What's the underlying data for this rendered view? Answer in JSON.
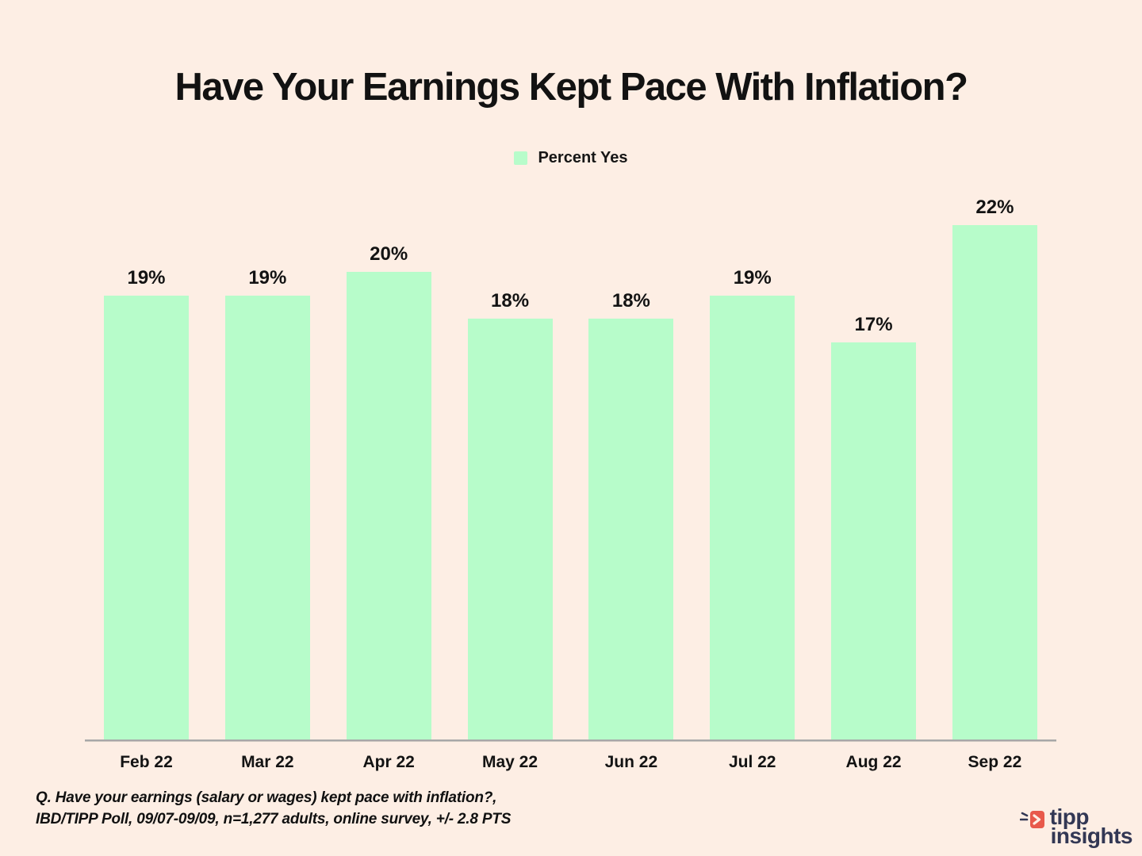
{
  "title": "Have Your Earnings Kept Pace With Inflation?",
  "legend": {
    "label": "Percent Yes"
  },
  "chart_data": {
    "type": "bar",
    "title": "Have Your Earnings Kept Pace With Inflation?",
    "categories": [
      "Feb 22",
      "Mar 22",
      "Apr 22",
      "May 22",
      "Jun 22",
      "Jul 22",
      "Aug 22",
      "Sep 22"
    ],
    "series": [
      {
        "name": "Percent Yes",
        "values": [
          19,
          19,
          20,
          18,
          18,
          19,
          17,
          22
        ]
      }
    ],
    "unit": "%",
    "value_labels": [
      "19%",
      "19%",
      "20%",
      "18%",
      "18%",
      "19%",
      "17%",
      "22%"
    ],
    "xlabel": "",
    "ylabel": "",
    "y_axis_visible": false,
    "grid": false,
    "legend_position": "top-center",
    "bar_color": "#B7FCCA"
  },
  "footnote": {
    "line1": "Q. Have your earnings (salary or wages) kept pace with inflation?,",
    "line2": "IBD/TIPP Poll, 09/07-09/09, n=1,277 adults, online survey, +/- 2.8 PTS"
  },
  "logo": {
    "line1": "tipp",
    "line2": "insights"
  },
  "colors": {
    "background": "#FDEEE4",
    "bar_green": "#B7FCCA",
    "axis_gray": "#A8A8A8",
    "text_black": "#131313",
    "brand_navy": "#323754",
    "brand_red": "#E8594B"
  }
}
